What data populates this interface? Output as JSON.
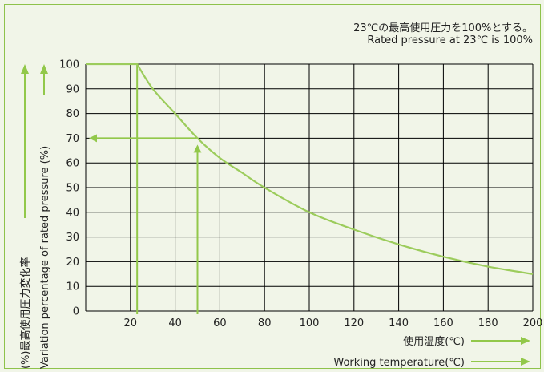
{
  "notes": {
    "jp": "23℃の最高使用圧力を100%とする。",
    "en": "Rated pressure at 23℃ is 100%"
  },
  "chart_data": {
    "type": "line",
    "title": "",
    "xlabel_jp": "使用温度(℃)",
    "xlabel_en": "Working temperature(℃)",
    "ylabel_jp": "(%)最高使用圧力変化率",
    "ylabel_en": "Variation percentage of rated pressure (%)",
    "xlim": [
      0,
      200
    ],
    "ylim": [
      0,
      100
    ],
    "x_ticks": [
      20,
      40,
      60,
      80,
      100,
      120,
      140,
      160,
      180,
      200
    ],
    "y_ticks": [
      0,
      10,
      20,
      30,
      40,
      50,
      60,
      70,
      80,
      90,
      100
    ],
    "grid": true,
    "series": [
      {
        "x": [
          0,
          23,
          30,
          40,
          50,
          60,
          70,
          80,
          100,
          120,
          140,
          160,
          180,
          200
        ],
        "y": [
          100,
          100,
          90,
          80,
          70,
          62,
          56,
          50,
          40,
          33,
          27,
          22,
          18,
          15
        ]
      }
    ],
    "annotations": [
      {
        "type": "arrow-path",
        "from": [
          23,
          0
        ],
        "via": [
          23,
          100
        ],
        "to": [
          0,
          100
        ]
      },
      {
        "type": "arrow-path",
        "from": [
          50,
          0
        ],
        "via": [
          50,
          70
        ],
        "to": [
          0,
          70
        ]
      }
    ],
    "colors": {
      "curve": "#9ccc5c",
      "arrows": "#92c84a",
      "grid": "#000000",
      "background": "#f1f5e8"
    }
  }
}
